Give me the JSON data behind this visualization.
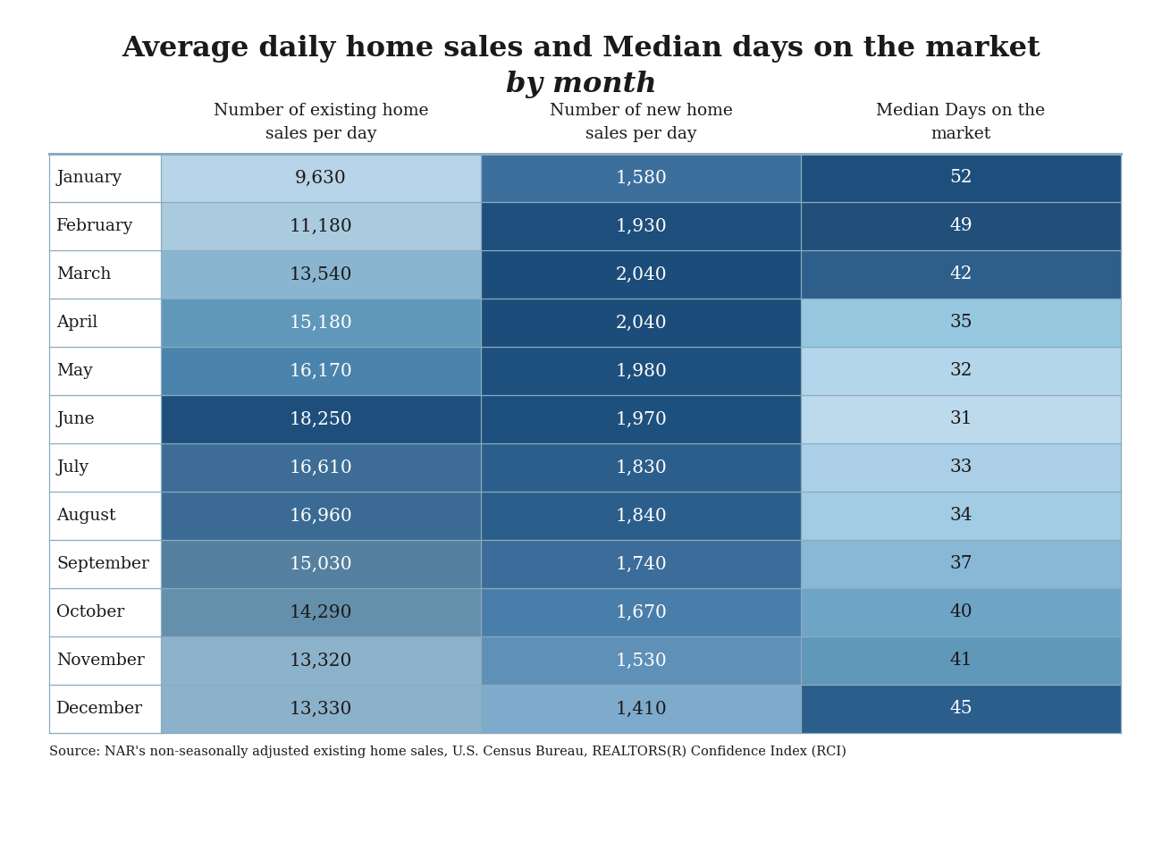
{
  "title_line1": "Average daily home sales and Median days on the market",
  "title_line2": "by month",
  "col_headers": [
    "Number of existing home\nsales per day",
    "Number of new home\nsales per day",
    "Median Days on the\nmarket"
  ],
  "months": [
    "January",
    "February",
    "March",
    "April",
    "May",
    "June",
    "July",
    "August",
    "September",
    "October",
    "November",
    "December"
  ],
  "existing_sales": [
    9630,
    11180,
    13540,
    15180,
    16170,
    18250,
    16610,
    16960,
    15030,
    14290,
    13320,
    13330
  ],
  "new_sales": [
    1580,
    1930,
    2040,
    2040,
    1980,
    1970,
    1830,
    1840,
    1740,
    1670,
    1530,
    1410
  ],
  "median_days": [
    52,
    49,
    42,
    35,
    32,
    31,
    33,
    34,
    37,
    40,
    41,
    45
  ],
  "source_text": "Source: NAR's non-seasonally adjusted existing home sales, U.S. Census Bureau, REALTORS(R) Confidence Index (RCI)",
  "bg_color": "#ffffff",
  "text_color_dark": "#1a1a1a",
  "text_color_white": "#ffffff",
  "existing_colors": [
    "#b8d4e8",
    "#aacade",
    "#8ab5d0",
    "#6098ba",
    "#4a84ad",
    "#1e4f7c",
    "#3d6d96",
    "#3b6b94",
    "#5580a0",
    "#6590ac",
    "#8db2cb",
    "#8cb1ca"
  ],
  "new_sales_colors": [
    "#3d6f9c",
    "#1e4f7c",
    "#1c4d7a",
    "#1c4d7a",
    "#1e507e",
    "#1e507e",
    "#2c5e8c",
    "#2c5e8c",
    "#3c6c9a",
    "#4a7eaa",
    "#5e90b8",
    "#7eaacb"
  ],
  "median_colors": [
    "#1e4f7c",
    "#214f7a",
    "#2e5e8a",
    "#96c8e0",
    "#b4d6ea",
    "#bddaec",
    "#aacfe6",
    "#a2cbe4",
    "#88b8d6",
    "#6ea4c6",
    "#6098ba",
    "#2c5e8c"
  ],
  "existing_text_colors": [
    "#1a1a1a",
    "#1a1a1a",
    "#1a1a1a",
    "#ffffff",
    "#ffffff",
    "#ffffff",
    "#ffffff",
    "#ffffff",
    "#ffffff",
    "#1a1a1a",
    "#1a1a1a",
    "#1a1a1a"
  ],
  "new_sales_text_colors": [
    "#ffffff",
    "#ffffff",
    "#ffffff",
    "#ffffff",
    "#ffffff",
    "#ffffff",
    "#ffffff",
    "#ffffff",
    "#ffffff",
    "#ffffff",
    "#ffffff",
    "#1a1a1a"
  ],
  "median_text_colors": [
    "#ffffff",
    "#ffffff",
    "#ffffff",
    "#1a1a1a",
    "#1a1a1a",
    "#1a1a1a",
    "#1a1a1a",
    "#1a1a1a",
    "#1a1a1a",
    "#1a1a1a",
    "#1a1a1a",
    "#ffffff"
  ],
  "cell_border_color": "#8aabbd"
}
